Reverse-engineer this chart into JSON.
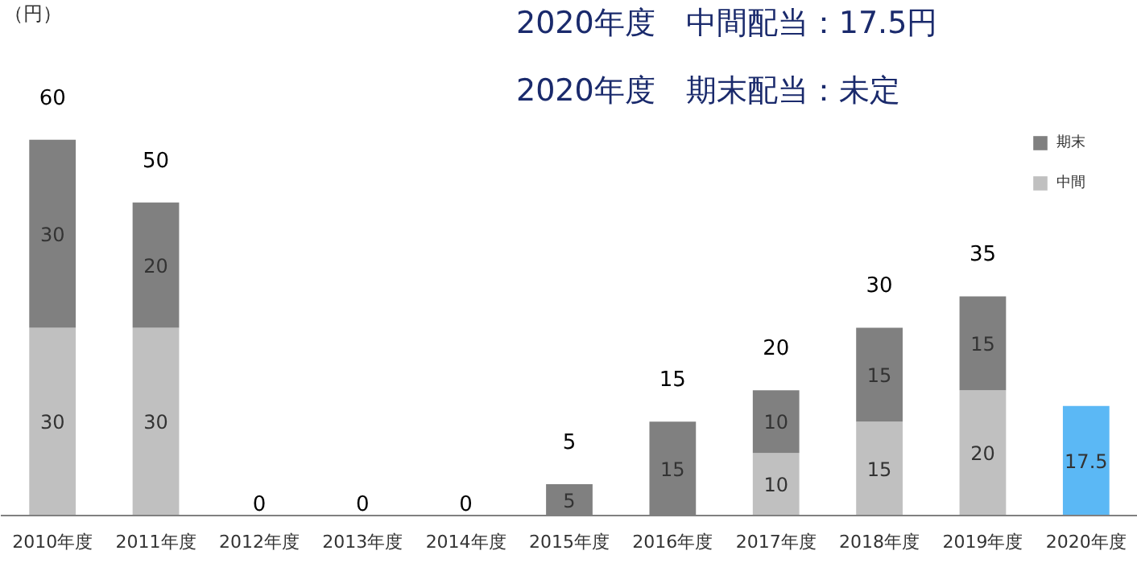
{
  "chart_data": {
    "type": "bar",
    "stacked": true,
    "annotations": [
      "（円）",
      "2020年度　中間配当：17.5円",
      "2020年度　期末配当：未定"
    ],
    "categories": [
      "2010年度",
      "2011年度",
      "2012年度",
      "2013年度",
      "2014年度",
      "2015年度",
      "2016年度",
      "2017年度",
      "2018年度",
      "2019年度",
      "2020年度"
    ],
    "series": [
      {
        "name": "中間",
        "color": "#c0c0c0",
        "colors": [
          "#c0c0c0",
          "#c0c0c0",
          "#c0c0c0",
          "#c0c0c0",
          "#c0c0c0",
          "#c0c0c0",
          "#c0c0c0",
          "#c0c0c0",
          "#c0c0c0",
          "#c0c0c0",
          "#5bb8f5"
        ],
        "values": [
          30,
          30,
          0,
          0,
          0,
          0,
          0,
          10,
          15,
          20,
          17.5
        ],
        "value_labels": [
          "30",
          "30",
          null,
          null,
          null,
          null,
          null,
          "10",
          "15",
          "20",
          "17.5"
        ]
      },
      {
        "name": "期末",
        "color": "#808080",
        "values": [
          30,
          20,
          0,
          0,
          0,
          5,
          15,
          10,
          15,
          15,
          null
        ],
        "value_labels": [
          "30",
          "20",
          null,
          null,
          null,
          "5",
          "15",
          "10",
          "15",
          "15",
          null
        ]
      }
    ],
    "totals": [
      "60",
      "50",
      "0",
      "0",
      "0",
      "5",
      "15",
      "20",
      "30",
      "35",
      null
    ],
    "legend": "top right",
    "grid": false
  }
}
